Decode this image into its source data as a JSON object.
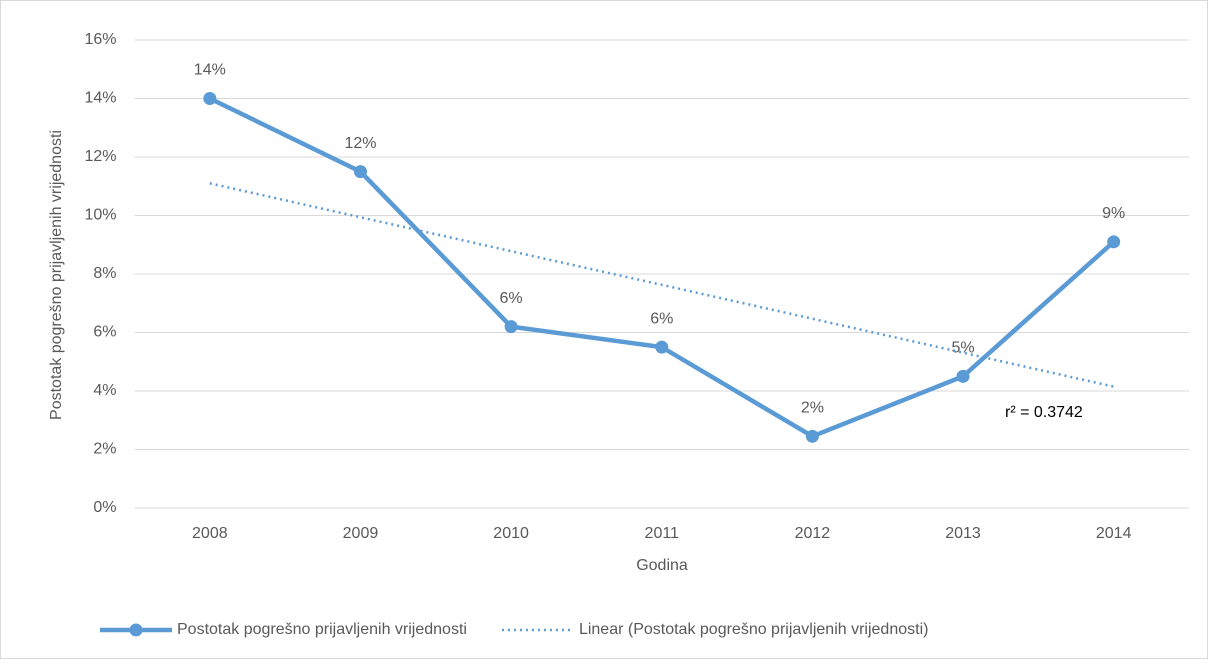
{
  "chart_data": {
    "type": "line",
    "x_label": "Godina",
    "y_label": "Postotak pogrešno prijavljenih vrijednosti",
    "categories": [
      "2008",
      "2009",
      "2010",
      "2011",
      "2012",
      "2013",
      "2014"
    ],
    "series": [
      {
        "name": "Postotak pogrešno prijavljenih vrijednosti",
        "color": "#5b9bd5",
        "values": [
          14.0,
          11.5,
          6.2,
          5.5,
          2.45,
          4.5,
          9.1
        ],
        "value_labels": [
          "14%",
          "12%",
          "6%",
          "6%",
          "2%",
          "5%",
          "9%"
        ]
      },
      {
        "name": "Linear (Postotak pogrešno prijavljenih vrijednosti)",
        "color": "#5b9bd5",
        "style": "dotted",
        "values": [
          11.1,
          9.94,
          8.78,
          7.63,
          6.47,
          5.31,
          4.15
        ]
      }
    ],
    "annotation": "r² = 0.3742",
    "ylim": [
      0,
      16
    ],
    "yticks": [
      {
        "value": 0,
        "label": "0%"
      },
      {
        "value": 2,
        "label": "2%"
      },
      {
        "value": 4,
        "label": "4%"
      },
      {
        "value": 6,
        "label": "6%"
      },
      {
        "value": 8,
        "label": "8%"
      },
      {
        "value": 10,
        "label": "10%"
      },
      {
        "value": 12,
        "label": "12%"
      },
      {
        "value": 14,
        "label": "14%"
      },
      {
        "value": 16,
        "label": "16%"
      }
    ],
    "grid": true,
    "legend": "bottom"
  }
}
